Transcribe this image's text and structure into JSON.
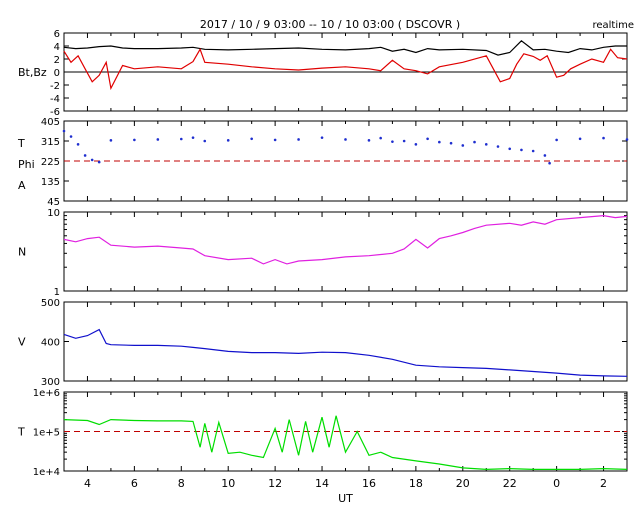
{
  "header": {
    "title": "2017 / 10 / 9   03:00 -- 10 / 10   03:00 ( DSCOVR )",
    "mode": "realtime"
  },
  "chart_data": [
    {
      "type": "line",
      "panel": "magnetic-field",
      "ylabel": "Bt,Bz",
      "ylim": [
        -6,
        6
      ],
      "y_ticks": [
        "6",
        "4",
        "2",
        "0",
        "-2",
        "-4",
        "-6"
      ],
      "zero_line": 0,
      "series": [
        {
          "name": "Bt",
          "color": "#000000",
          "x": [
            3,
            3.5,
            4,
            4.5,
            5,
            5.5,
            6,
            7,
            8,
            8.5,
            9,
            10,
            11,
            12,
            13,
            14,
            15,
            16,
            16.5,
            17,
            17.5,
            18,
            18.5,
            19,
            20,
            21,
            21.5,
            22,
            22.5,
            23,
            23.5,
            24,
            24.5,
            25,
            25.5,
            26,
            26.5,
            27
          ],
          "values": [
            3.8,
            3.6,
            3.7,
            3.9,
            4.0,
            3.7,
            3.6,
            3.6,
            3.7,
            3.8,
            3.5,
            3.4,
            3.5,
            3.6,
            3.7,
            3.5,
            3.4,
            3.6,
            3.8,
            3.2,
            3.5,
            3.0,
            3.6,
            3.4,
            3.5,
            3.3,
            2.6,
            3.0,
            4.8,
            3.4,
            3.5,
            3.2,
            3.0,
            3.6,
            3.4,
            3.8,
            4.0,
            4.0
          ]
        },
        {
          "name": "Bz",
          "color": "#e00000",
          "x": [
            3,
            3.3,
            3.6,
            3.9,
            4.2,
            4.5,
            4.8,
            5,
            5.5,
            6,
            7,
            8,
            8.5,
            8.8,
            9,
            10,
            11,
            12,
            13,
            14,
            15,
            16,
            16.5,
            17,
            17.5,
            18,
            18.5,
            19,
            20,
            21,
            21.3,
            21.6,
            22,
            22.3,
            22.6,
            23,
            23.3,
            23.6,
            24,
            24.3,
            24.6,
            25,
            25.5,
            26,
            26.3,
            26.6,
            27
          ],
          "values": [
            3.2,
            1.5,
            2.5,
            0.5,
            -1.5,
            -0.5,
            1.5,
            -2.5,
            1.0,
            0.5,
            0.8,
            0.5,
            1.6,
            3.5,
            1.5,
            1.2,
            0.8,
            0.5,
            0.3,
            0.6,
            0.8,
            0.5,
            0.2,
            1.8,
            0.5,
            0.2,
            -0.3,
            0.8,
            1.5,
            2.5,
            0.5,
            -1.5,
            -1.0,
            1.2,
            2.8,
            2.4,
            1.8,
            2.5,
            -0.8,
            -0.5,
            0.5,
            1.2,
            2.0,
            1.5,
            3.5,
            2.2,
            2.0
          ]
        }
      ]
    },
    {
      "type": "scatter",
      "panel": "imf-angle",
      "ylabel_lines": [
        "T",
        "Phi",
        "A"
      ],
      "ylim": [
        45,
        405
      ],
      "y_ticks": [
        "405",
        "315",
        "225",
        "135",
        "45"
      ],
      "reference_line": 225,
      "series": [
        {
          "name": "Phi",
          "color": "#1f2fcf",
          "x": [
            3,
            3.3,
            3.6,
            3.9,
            4.2,
            4.5,
            5,
            6,
            7,
            8,
            8.5,
            9,
            10,
            11,
            12,
            13,
            14,
            15,
            16,
            16.5,
            17,
            17.5,
            18,
            18.5,
            19,
            19.5,
            20,
            20.5,
            21,
            21.5,
            22,
            22.5,
            23,
            23.5,
            23.7,
            24,
            25,
            26,
            27
          ],
          "values": [
            360,
            335,
            300,
            250,
            230,
            220,
            318,
            320,
            322,
            324,
            330,
            315,
            318,
            325,
            320,
            322,
            330,
            322,
            318,
            328,
            312,
            315,
            300,
            325,
            310,
            305,
            295,
            310,
            300,
            290,
            280,
            275,
            270,
            250,
            215,
            320,
            325,
            328,
            322
          ]
        }
      ]
    },
    {
      "type": "line",
      "panel": "density",
      "ylabel": "N",
      "y_scale": "log",
      "ylim": [
        1,
        10
      ],
      "y_ticks": [
        "10",
        "1"
      ],
      "series": [
        {
          "name": "N",
          "color": "#e020e0",
          "x": [
            3,
            3.5,
            4,
            4.5,
            5,
            6,
            7,
            8,
            8.5,
            9,
            10,
            11,
            11.5,
            12,
            12.5,
            13,
            14,
            15,
            16,
            17,
            17.5,
            18,
            18.5,
            19,
            19.5,
            20,
            20.5,
            21,
            22,
            22.5,
            23,
            23.5,
            24,
            25,
            26,
            26.5,
            27
          ],
          "values": [
            4.5,
            4.2,
            4.6,
            4.8,
            3.8,
            3.6,
            3.7,
            3.5,
            3.4,
            2.8,
            2.5,
            2.6,
            2.2,
            2.5,
            2.2,
            2.4,
            2.5,
            2.7,
            2.8,
            3.0,
            3.4,
            4.5,
            3.5,
            4.6,
            5.0,
            5.5,
            6.2,
            6.8,
            7.2,
            6.8,
            7.5,
            7.0,
            8.0,
            8.5,
            9.0,
            8.5,
            8.8
          ]
        }
      ]
    },
    {
      "type": "line",
      "panel": "speed",
      "ylabel": "V",
      "ylim": [
        300,
        500
      ],
      "y_ticks": [
        "500",
        "400",
        "300"
      ],
      "series": [
        {
          "name": "V",
          "color": "#1010cc",
          "x": [
            3,
            3.5,
            4,
            4.5,
            4.8,
            5,
            6,
            7,
            8,
            8.5,
            9,
            10,
            11,
            12,
            13,
            14,
            15,
            16,
            17,
            18,
            19,
            20,
            21,
            22,
            23,
            24,
            25,
            26,
            27
          ],
          "values": [
            418,
            408,
            415,
            430,
            395,
            392,
            390,
            390,
            388,
            385,
            382,
            375,
            372,
            372,
            370,
            373,
            372,
            365,
            355,
            340,
            336,
            334,
            332,
            328,
            324,
            320,
            315,
            313,
            312
          ]
        }
      ]
    },
    {
      "type": "line",
      "panel": "temperature",
      "ylabel": "T",
      "y_scale": "log",
      "ylim": [
        10000,
        1000000
      ],
      "y_ticks": [
        "1e+6",
        "1e+5",
        "1e+4"
      ],
      "reference_line": 100000,
      "xlabel": "UT",
      "x_ticks": [
        "4",
        "6",
        "8",
        "10",
        "12",
        "14",
        "16",
        "18",
        "20",
        "22",
        "0",
        "2"
      ],
      "x_tick_hours": [
        4,
        6,
        8,
        10,
        12,
        14,
        16,
        18,
        20,
        22,
        24,
        26
      ],
      "xlim": [
        3,
        27
      ],
      "series": [
        {
          "name": "T",
          "color": "#00dd00",
          "x": [
            3,
            4,
            4.5,
            5,
            6,
            7,
            8,
            8.5,
            8.8,
            9,
            9.3,
            9.6,
            10,
            10.5,
            11,
            11.5,
            12,
            12.3,
            12.6,
            13,
            13.3,
            13.6,
            14,
            14.3,
            14.6,
            15,
            15.5,
            16,
            16.5,
            17,
            18,
            19,
            20,
            21,
            22,
            23,
            24,
            25,
            26,
            27
          ],
          "values": [
            200000,
            190000,
            150000,
            200000,
            190000,
            185000,
            185000,
            180000,
            40000,
            160000,
            30000,
            170000,
            28000,
            30000,
            25000,
            22000,
            120000,
            30000,
            200000,
            25000,
            180000,
            30000,
            230000,
            40000,
            250000,
            30000,
            100000,
            25000,
            30000,
            22000,
            18000,
            15000,
            12000,
            11000,
            11500,
            11000,
            11000,
            11000,
            11500,
            11000
          ]
        }
      ]
    }
  ]
}
